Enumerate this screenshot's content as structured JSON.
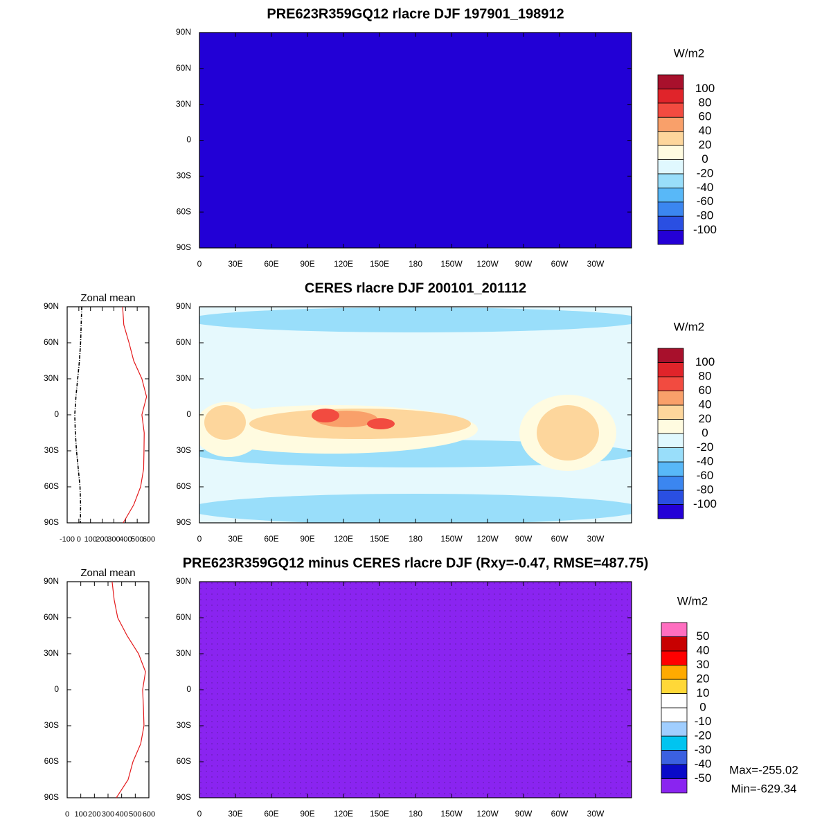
{
  "chart_data": [
    {
      "type": "map",
      "title": "PRE623R359GQ12 rlacre DJF 197901_198912",
      "color": "#2200d6",
      "xlim": [
        0,
        360
      ],
      "ylim": [
        -90,
        90
      ],
      "xticks": [
        0,
        {
          "value": 30,
          "label": "30E"
        },
        {
          "value": 60,
          "label": "60E"
        },
        {
          "value": 90,
          "label": "90E"
        },
        {
          "value": 120,
          "label": "120E"
        },
        {
          "value": 150,
          "label": "150E"
        },
        {
          "value": 180,
          "label": "180"
        },
        {
          "value": 210,
          "label": "150W"
        },
        {
          "value": 240,
          "label": "120W"
        },
        {
          "value": 270,
          "label": "90W"
        },
        {
          "value": 300,
          "label": "60W"
        },
        {
          "value": 330,
          "label": "30W"
        }
      ],
      "yticks": [
        {
          "value": 90,
          "label": "90N"
        },
        {
          "value": 60,
          "label": "60N"
        },
        {
          "value": 30,
          "label": "30N"
        },
        0,
        {
          "value": -30,
          "label": "30S"
        },
        {
          "value": -60,
          "label": "60S"
        },
        {
          "value": -90,
          "label": "90S"
        }
      ],
      "colorbar": {
        "title": "W/m2",
        "levels": [
          -100,
          -80,
          -60,
          -40,
          -20,
          0,
          20,
          40,
          60,
          80,
          100
        ],
        "colors": [
          "#2400d6",
          "#2a4fe2",
          "#3b86f0",
          "#58b8f8",
          "#99defa",
          "#e0f8fe",
          "#fffbe0",
          "#fdd69c",
          "#f9a06a",
          "#f24b40",
          "#e0242a",
          "#a8102c"
        ]
      }
    },
    {
      "type": "map",
      "title": "CERES rlacre DJF 200101_201112",
      "color": "#e6f9fd",
      "xlim": [
        0,
        360
      ],
      "ylim": [
        -90,
        90
      ],
      "xticks": [
        0,
        {
          "value": 30,
          "label": "30E"
        },
        {
          "value": 60,
          "label": "60E"
        },
        {
          "value": 90,
          "label": "90E"
        },
        {
          "value": 120,
          "label": "120E"
        },
        {
          "value": 150,
          "label": "150E"
        },
        {
          "value": 180,
          "label": "180"
        },
        {
          "value": 210,
          "label": "150W"
        },
        {
          "value": 240,
          "label": "120W"
        },
        {
          "value": 270,
          "label": "90W"
        },
        {
          "value": 300,
          "label": "60W"
        },
        {
          "value": 330,
          "label": "30W"
        }
      ],
      "yticks": [
        {
          "value": 90,
          "label": "90N"
        },
        {
          "value": 60,
          "label": "60N"
        },
        {
          "value": 30,
          "label": "30N"
        },
        0,
        {
          "value": -30,
          "label": "30S"
        },
        {
          "value": -60,
          "label": "60S"
        },
        {
          "value": -90,
          "label": "90S"
        }
      ],
      "colorbar": {
        "title": "W/m2",
        "levels": [
          -100,
          -80,
          -60,
          -40,
          -20,
          0,
          20,
          40,
          60,
          80,
          100
        ],
        "colors": [
          "#2400d6",
          "#2a4fe2",
          "#3b86f0",
          "#58b8f8",
          "#99defa",
          "#e0f8fe",
          "#fffbe0",
          "#fdd69c",
          "#f9a06a",
          "#f24b40",
          "#e0242a",
          "#a8102c"
        ]
      }
    },
    {
      "type": "line",
      "title": "Zonal mean",
      "xlim": [
        -100,
        600
      ],
      "ylim": [
        -90,
        90
      ],
      "xticks": [
        -100,
        0,
        100,
        200,
        300,
        400,
        500,
        600
      ],
      "yticks": [
        {
          "value": 90,
          "label": "90N"
        },
        {
          "value": 60,
          "label": "60N"
        },
        {
          "value": 30,
          "label": "30N"
        },
        0,
        {
          "value": -30,
          "label": "30S"
        },
        {
          "value": -60,
          "label": "60S"
        },
        {
          "value": -90,
          "label": "90S"
        }
      ],
      "y": [
        90,
        75,
        60,
        45,
        30,
        15,
        0,
        -15,
        -30,
        -45,
        -60,
        -75,
        -90
      ],
      "series": [
        {
          "color": "#000000",
          "dash": true,
          "values": [
            25,
            20,
            15,
            5,
            -10,
            -25,
            -35,
            -30,
            -20,
            -5,
            10,
            15,
            13
          ]
        },
        {
          "color": "#e41a1c",
          "values": [
            375,
            385,
            430,
            470,
            540,
            580,
            540,
            560,
            558,
            555,
            529,
            470,
            380
          ]
        }
      ]
    },
    {
      "type": "map",
      "title": "PRE623R359GQ12 minus CERES rlacre DJF (Rxy=-0.47, RMSE=487.75)",
      "color": "#8a24f0",
      "xlim": [
        0,
        360
      ],
      "ylim": [
        -90,
        90
      ],
      "xticks": [
        0,
        {
          "value": 30,
          "label": "30E"
        },
        {
          "value": 60,
          "label": "60E"
        },
        {
          "value": 90,
          "label": "90E"
        },
        {
          "value": 120,
          "label": "120E"
        },
        {
          "value": 150,
          "label": "150E"
        },
        {
          "value": 180,
          "label": "180"
        },
        {
          "value": 210,
          "label": "150W"
        },
        {
          "value": 240,
          "label": "120W"
        },
        {
          "value": 270,
          "label": "90W"
        },
        {
          "value": 300,
          "label": "60W"
        },
        {
          "value": 330,
          "label": "30W"
        }
      ],
      "yticks": [
        {
          "value": 90,
          "label": "90N"
        },
        {
          "value": 60,
          "label": "60N"
        },
        {
          "value": 30,
          "label": "30N"
        },
        0,
        {
          "value": -30,
          "label": "30S"
        },
        {
          "value": -60,
          "label": "60S"
        },
        {
          "value": -90,
          "label": "90S"
        }
      ],
      "colorbar": {
        "title": "W/m2",
        "levels": [
          -50,
          -40,
          -30,
          -20,
          -10,
          0,
          10,
          20,
          30,
          40,
          50
        ],
        "colors": [
          "#8a24f0",
          "#0a0ac8",
          "#3b60e0",
          "#00c4f0",
          "#a0ceff",
          "#ffffff",
          "#ffffff",
          "#ffd838",
          "#ffaa00",
          "#ff0000",
          "#c80000",
          "#ff6ec0"
        ]
      },
      "annotations": [
        "Max=-255.02",
        "Min=-629.34"
      ]
    },
    {
      "type": "line",
      "title": "Zonal mean",
      "xlim": [
        0,
        600
      ],
      "ylim": [
        -90,
        90
      ],
      "xticks": [
        0,
        100,
        200,
        300,
        400,
        500,
        600
      ],
      "yticks": [
        {
          "value": 90,
          "label": "90N"
        },
        {
          "value": 60,
          "label": "60N"
        },
        {
          "value": 30,
          "label": "30N"
        },
        0,
        {
          "value": -30,
          "label": "30S"
        },
        {
          "value": -60,
          "label": "60S"
        },
        {
          "value": -90,
          "label": "90S"
        }
      ],
      "y": [
        90,
        75,
        60,
        45,
        30,
        15,
        0,
        -15,
        -30,
        -45,
        -60,
        -75,
        -90
      ],
      "series": [
        {
          "color": "#e41a1c",
          "values": [
            330,
            345,
            371,
            440,
            524,
            575,
            554,
            560,
            564,
            540,
            483,
            447,
            361
          ]
        }
      ]
    }
  ]
}
